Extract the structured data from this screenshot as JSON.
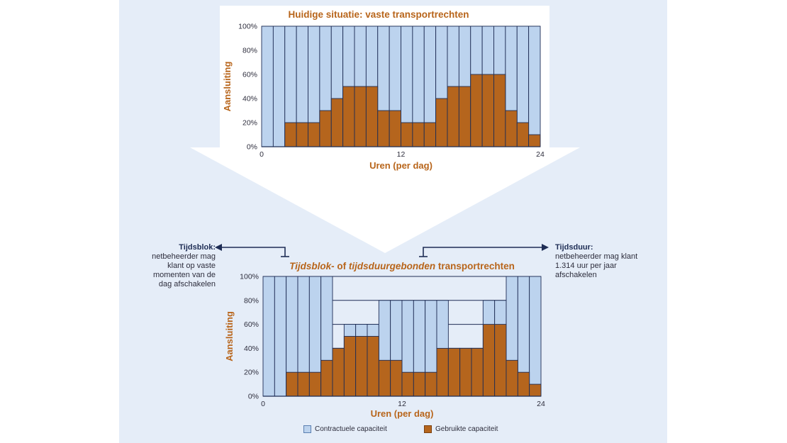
{
  "colors": {
    "contract_fill": "#bcd3ee",
    "used_fill": "#b5651d",
    "grid": "#1e2d55",
    "title": "#b8651b",
    "note_heading": "#1e2d55"
  },
  "notes": {
    "left": {
      "heading": "Tijdsblok:",
      "body": "netbeheerder mag klant op vaste momenten van de dag afschakelen"
    },
    "right": {
      "heading": "Tijdsduur:",
      "body": "netbeheerder mag klant 1.314 uur per jaar afschakelen"
    }
  },
  "legend": {
    "contract": "Contractuele capaciteit",
    "used": "Gebruikte capaciteit"
  },
  "chart_data": [
    {
      "type": "bar",
      "title": "Huidige situatie: vaste transportrechten",
      "xlabel": "Uren (per dag)",
      "ylabel": "Aansluiting",
      "x_ticks": [
        "0",
        "12",
        "24"
      ],
      "y_ticks": [
        "0%",
        "20%",
        "40%",
        "60%",
        "80%",
        "100%"
      ],
      "ylim": [
        0,
        100
      ],
      "categories": [
        0,
        1,
        2,
        3,
        4,
        5,
        6,
        7,
        8,
        9,
        10,
        11,
        12,
        13,
        14,
        15,
        16,
        17,
        18,
        19,
        20,
        21,
        22,
        23
      ],
      "series": [
        {
          "name": "Contractuele capaciteit",
          "values": [
            100,
            100,
            100,
            100,
            100,
            100,
            100,
            100,
            100,
            100,
            100,
            100,
            100,
            100,
            100,
            100,
            100,
            100,
            100,
            100,
            100,
            100,
            100,
            100
          ]
        },
        {
          "name": "Gebruikte capaciteit",
          "values": [
            0,
            0,
            20,
            20,
            20,
            30,
            40,
            50,
            50,
            50,
            30,
            30,
            20,
            20,
            20,
            40,
            50,
            50,
            60,
            60,
            60,
            30,
            20,
            10
          ]
        }
      ]
    },
    {
      "type": "bar",
      "title_parts": [
        {
          "text": "Tijdsblok",
          "italic": true
        },
        {
          "text": "- of ",
          "italic": false
        },
        {
          "text": "tijdsduurgebonden",
          "italic": true
        },
        {
          "text": " transportrechten",
          "italic": false
        }
      ],
      "xlabel": "Uren (per dag)",
      "ylabel": "Aansluiting",
      "x_ticks": [
        "0",
        "12",
        "24"
      ],
      "y_ticks": [
        "0%",
        "20%",
        "40%",
        "60%",
        "80%",
        "100%"
      ],
      "ylim": [
        0,
        100
      ],
      "categories": [
        0,
        1,
        2,
        3,
        4,
        5,
        6,
        7,
        8,
        9,
        10,
        11,
        12,
        13,
        14,
        15,
        16,
        17,
        18,
        19,
        20,
        21,
        22,
        23
      ],
      "series": [
        {
          "name": "Contractuele capaciteit",
          "values": [
            100,
            100,
            100,
            100,
            100,
            100,
            40,
            60,
            60,
            60,
            80,
            80,
            80,
            80,
            80,
            80,
            40,
            40,
            40,
            80,
            80,
            100,
            100,
            100
          ]
        },
        {
          "name": "Gebruikte capaciteit",
          "values": [
            0,
            0,
            20,
            20,
            20,
            30,
            40,
            50,
            50,
            50,
            30,
            30,
            20,
            20,
            20,
            40,
            40,
            40,
            40,
            60,
            60,
            30,
            20,
            10
          ]
        }
      ]
    }
  ]
}
